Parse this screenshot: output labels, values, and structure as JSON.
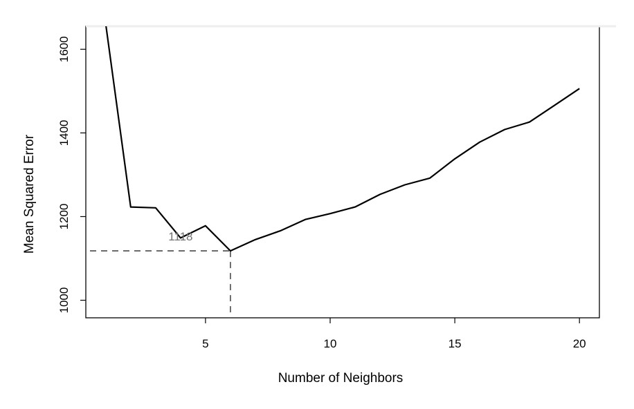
{
  "chart_data": {
    "type": "line",
    "title": "",
    "xlabel": "Number of Neighbors",
    "ylabel": "Mean Squared Error",
    "xlim": [
      0.2,
      20.8
    ],
    "ylim": [
      958,
      1655
    ],
    "xticks": [
      5,
      10,
      15,
      20
    ],
    "yticks": [
      1000,
      1200,
      1400,
      1600
    ],
    "series": [
      {
        "x": [
          1,
          2,
          3,
          4,
          5,
          6,
          7,
          8,
          9,
          10,
          11,
          12,
          13,
          14,
          15,
          16,
          17,
          18,
          19,
          20
        ],
        "y": [
          1660,
          1223,
          1221,
          1149,
          1178,
          1118,
          1145,
          1166,
          1193,
          1207,
          1223,
          1253,
          1276,
          1292,
          1338,
          1378,
          1408,
          1426,
          1466,
          1506
        ],
        "color": "#000000"
      }
    ],
    "minimum": {
      "x": 6,
      "y": 1118,
      "label": "1118",
      "line_color": "#555555"
    },
    "grid": false,
    "legend": "none"
  }
}
